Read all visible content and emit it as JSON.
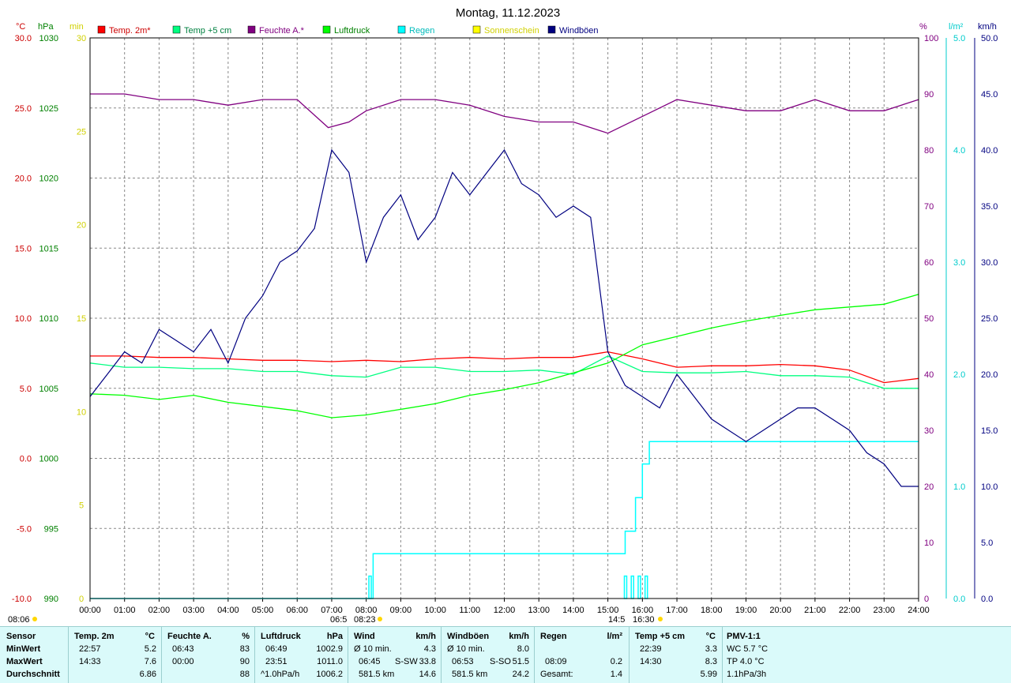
{
  "title": "Montag, 11.12.2023",
  "legend": [
    {
      "name": "Temp. 2m*",
      "color": "#ff0000",
      "text_color": "#cc0000"
    },
    {
      "name": "Temp +5 cm",
      "color": "#00ff80",
      "text_color": "#008040"
    },
    {
      "name": "Feuchte A.*",
      "color": "#800080",
      "text_color": "#800080"
    },
    {
      "name": "Luftdruck",
      "color": "#00ff00",
      "text_color": "#008000"
    },
    {
      "name": "Regen",
      "color": "#00ffff",
      "text_color": "#00bbbb"
    },
    {
      "name": "Sonnenschein",
      "color": "#ffff00",
      "text_color": "#d0d000"
    },
    {
      "name": "Windböen",
      "color": "#000080",
      "text_color": "#000080"
    }
  ],
  "axes": {
    "temp": {
      "unit": "°C",
      "color": "#cc0000",
      "ticks": [
        "30.0",
        "25.0",
        "20.0",
        "15.0",
        "10.0",
        "5.0",
        "0.0",
        "-5.0",
        "-10.0"
      ]
    },
    "pressure": {
      "unit": "hPa",
      "color": "#008000",
      "ticks": [
        "1030",
        "1025",
        "1020",
        "1015",
        "1010",
        "1005",
        "1000",
        "995",
        "990"
      ]
    },
    "sun": {
      "unit": "min",
      "color": "#d0d000",
      "ticks": [
        "30",
        "25",
        "20",
        "15",
        "10",
        "5",
        "0"
      ]
    },
    "humidity": {
      "unit": "%",
      "color": "#800080",
      "ticks": [
        "100",
        "90",
        "80",
        "70",
        "60",
        "50",
        "40",
        "30",
        "20",
        "10",
        "0"
      ]
    },
    "rain": {
      "unit": "l/m²",
      "color": "#00cccc",
      "ticks": [
        "5.0",
        "4.0",
        "3.0",
        "2.0",
        "1.0",
        "0.0"
      ]
    },
    "wind": {
      "unit": "km/h",
      "color": "#000080",
      "ticks": [
        "50.0",
        "45.0",
        "40.0",
        "35.0",
        "30.0",
        "25.0",
        "20.0",
        "15.0",
        "10.0",
        "5.0",
        "0.0"
      ]
    }
  },
  "x_ticks": [
    "00:00",
    "01:00",
    "02:00",
    "03:00",
    "04:00",
    "05:00",
    "06:00",
    "07:00",
    "08:00",
    "09:00",
    "10:00",
    "11:00",
    "12:00",
    "13:00",
    "14:00",
    "15:00",
    "16:00",
    "17:00",
    "18:00",
    "19:00",
    "20:00",
    "21:00",
    "22:00",
    "23:00",
    "24:00"
  ],
  "sun_markers": {
    "left_label": "08:06",
    "sunrise_label": "06:5",
    "sunrise_time": "08:23",
    "sunset_label": "14:5",
    "sunset_time": "16:30"
  },
  "chart_data": {
    "type": "line",
    "x_unit": "hour",
    "xlim": [
      0,
      24
    ],
    "series": [
      {
        "name": "Temp. 2m*",
        "axis": "temp",
        "x": [
          0,
          1,
          2,
          3,
          4,
          5,
          6,
          7,
          8,
          9,
          10,
          11,
          12,
          13,
          14,
          15,
          16,
          17,
          18,
          19,
          20,
          21,
          22,
          23,
          24
        ],
        "values": [
          7.3,
          7.3,
          7.2,
          7.2,
          7.1,
          7.0,
          7.0,
          6.9,
          7.0,
          6.9,
          7.1,
          7.2,
          7.1,
          7.2,
          7.2,
          7.6,
          7.1,
          6.5,
          6.6,
          6.6,
          6.7,
          6.6,
          6.3,
          5.4,
          5.7
        ]
      },
      {
        "name": "Temp +5 cm",
        "axis": "temp",
        "x": [
          0,
          1,
          2,
          3,
          4,
          5,
          6,
          7,
          8,
          9,
          10,
          11,
          12,
          13,
          14,
          15,
          16,
          17,
          18,
          19,
          20,
          21,
          22,
          23,
          24
        ],
        "values": [
          6.8,
          6.5,
          6.5,
          6.4,
          6.4,
          6.2,
          6.2,
          5.9,
          5.8,
          6.5,
          6.5,
          6.2,
          6.2,
          6.3,
          6.0,
          7.3,
          6.2,
          6.1,
          6.1,
          6.2,
          5.9,
          5.9,
          5.8,
          5.0,
          5.0
        ]
      },
      {
        "name": "Feuchte A.*",
        "axis": "humidity",
        "x": [
          0,
          1,
          2,
          3,
          4,
          5,
          6,
          6.9,
          7.5,
          8,
          9,
          10,
          11,
          12,
          13,
          14,
          15,
          16,
          17,
          18,
          19,
          20,
          21,
          22,
          23,
          24
        ],
        "values": [
          90,
          90,
          89,
          89,
          88,
          89,
          89,
          84,
          85,
          87,
          89,
          89,
          88,
          86,
          85,
          85,
          83,
          86,
          89,
          88,
          87,
          87,
          89,
          87,
          87,
          89
        ]
      },
      {
        "name": "Luftdruck",
        "axis": "pressure",
        "x": [
          0,
          1,
          2,
          3,
          4,
          5,
          6,
          7,
          8,
          9,
          10,
          11,
          12,
          13,
          14,
          15,
          16,
          17,
          18,
          19,
          20,
          21,
          22,
          23,
          24
        ],
        "values": [
          1004.6,
          1004.5,
          1004.2,
          1004.5,
          1004.0,
          1003.7,
          1003.4,
          1002.9,
          1003.1,
          1003.5,
          1003.9,
          1004.5,
          1004.9,
          1005.4,
          1006.1,
          1006.8,
          1008.1,
          1008.7,
          1009.3,
          1009.8,
          1010.2,
          1010.6,
          1010.8,
          1011.0,
          1011.7
        ]
      },
      {
        "name": "Regen",
        "axis": "rain",
        "x": [
          0,
          8.15,
          8.2,
          9,
          10,
          11,
          12,
          13,
          14,
          15,
          15.4,
          15.5,
          15.8,
          16.0,
          16.2,
          17,
          18,
          19,
          20,
          21,
          22,
          23,
          24
        ],
        "values": [
          0,
          0,
          0.4,
          0.4,
          0.4,
          0.4,
          0.4,
          0.4,
          0.4,
          0.4,
          0.4,
          0.6,
          0.9,
          1.2,
          1.4,
          1.4,
          1.4,
          1.4,
          1.4,
          1.4,
          1.4,
          1.4,
          1.4
        ]
      },
      {
        "name": "Windböen",
        "axis": "wind",
        "x": [
          0,
          0.5,
          1,
          1.5,
          2,
          2.5,
          3,
          3.5,
          4,
          4.5,
          5,
          5.5,
          6,
          6.5,
          7,
          7.5,
          8,
          8.5,
          9,
          9.5,
          10,
          10.5,
          11,
          11.5,
          12,
          12.5,
          13,
          13.5,
          14,
          14.5,
          15,
          15.5,
          16,
          16.5,
          17,
          17.5,
          18,
          18.5,
          19,
          19.5,
          20,
          20.5,
          21,
          21.5,
          22,
          22.5,
          23,
          23.5,
          24
        ],
        "values": [
          18,
          20,
          22,
          21,
          24,
          23,
          22,
          24,
          21,
          25,
          27,
          30,
          31,
          33,
          40,
          38,
          30,
          34,
          36,
          32,
          34,
          38,
          36,
          38,
          40,
          37,
          36,
          34,
          35,
          34,
          22,
          19,
          18,
          17,
          20,
          18,
          16,
          15,
          14,
          15,
          16,
          17,
          17,
          16,
          15,
          13,
          12,
          10,
          10
        ]
      }
    ],
    "rain_bars": {
      "axis": "rain",
      "x": [
        8.1,
        15.5,
        15.7,
        15.9,
        16.1
      ],
      "values": [
        0.2,
        0.2,
        0.2,
        0.2,
        0.2
      ]
    }
  },
  "stats": {
    "sensor": {
      "header": "Sensor",
      "min": "MinWert",
      "max": "MaxWert",
      "avg": "Durchschnitt"
    },
    "temp2m": {
      "header": "Temp. 2m",
      "unit": "°C",
      "min_time": "22:57",
      "min_val": "5.2",
      "max_time": "14:33",
      "max_val": "7.6",
      "avg_val": "6.86"
    },
    "feuchte": {
      "header": "Feuchte A.",
      "unit": "%",
      "min_time": "06:43",
      "min_val": "83",
      "max_time": "00:00",
      "max_val": "90",
      "avg_val": "88"
    },
    "luftdruck": {
      "header": "Luftdruck",
      "unit": "hPa",
      "min_time": "06:49",
      "min_val": "1002.9",
      "max_time": "23:51",
      "max_val": "1011.0",
      "avg_label": "^1.0hPa/h",
      "avg_val": "1006.2"
    },
    "wind": {
      "header": "Wind",
      "unit": "km/h",
      "min_label": "Ø 10 min.",
      "min_val": "4.3",
      "max_time": "06:45",
      "max_dir": "S-SW",
      "max_val": "33.8",
      "avg_label": "581.5 km",
      "avg_val": "14.6"
    },
    "windboeen": {
      "header": "Windböen",
      "unit": "km/h",
      "min_label": "Ø 10 min.",
      "min_val": "8.0",
      "max_time": "06:53",
      "max_dir": "S-SO",
      "max_val": "51.5",
      "avg_label": "581.5 km",
      "avg_val": "24.2"
    },
    "regen": {
      "header": "Regen",
      "unit": "l/m²",
      "max_time": "08:09",
      "max_val": "0.2",
      "avg_label": "Gesamt:",
      "avg_val": "1.4"
    },
    "temp5cm": {
      "header": "Temp +5 cm",
      "unit": "°C",
      "min_time": "22:39",
      "min_val": "3.3",
      "max_time": "14:30",
      "max_val": "8.3",
      "avg_val": "5.99"
    },
    "pmv": {
      "header": "PMV-1:1",
      "row1": "WC 5.7 °C",
      "row2": "TP 4.0 °C",
      "row3": "1.1hPa/3h"
    }
  }
}
